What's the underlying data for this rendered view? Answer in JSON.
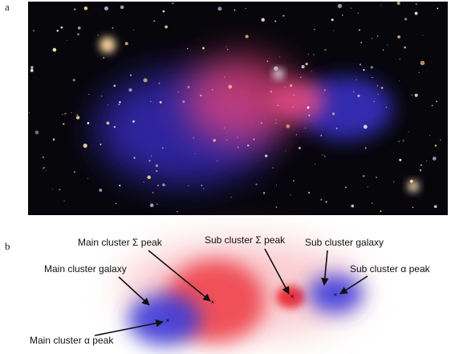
{
  "panels": {
    "a": {
      "label": "a"
    },
    "b": {
      "label": "b"
    }
  },
  "annotations": {
    "main_sigma_peak": "Main cluster Σ peak",
    "sub_sigma_peak": "Sub cluster Σ peak",
    "sub_galaxy": "Sub cluster galaxy",
    "main_galaxy": "Main cluster galaxy",
    "sub_alpha_peak": "Sub cluster α peak",
    "main_alpha_peak": "Main cluster α peak"
  }
}
